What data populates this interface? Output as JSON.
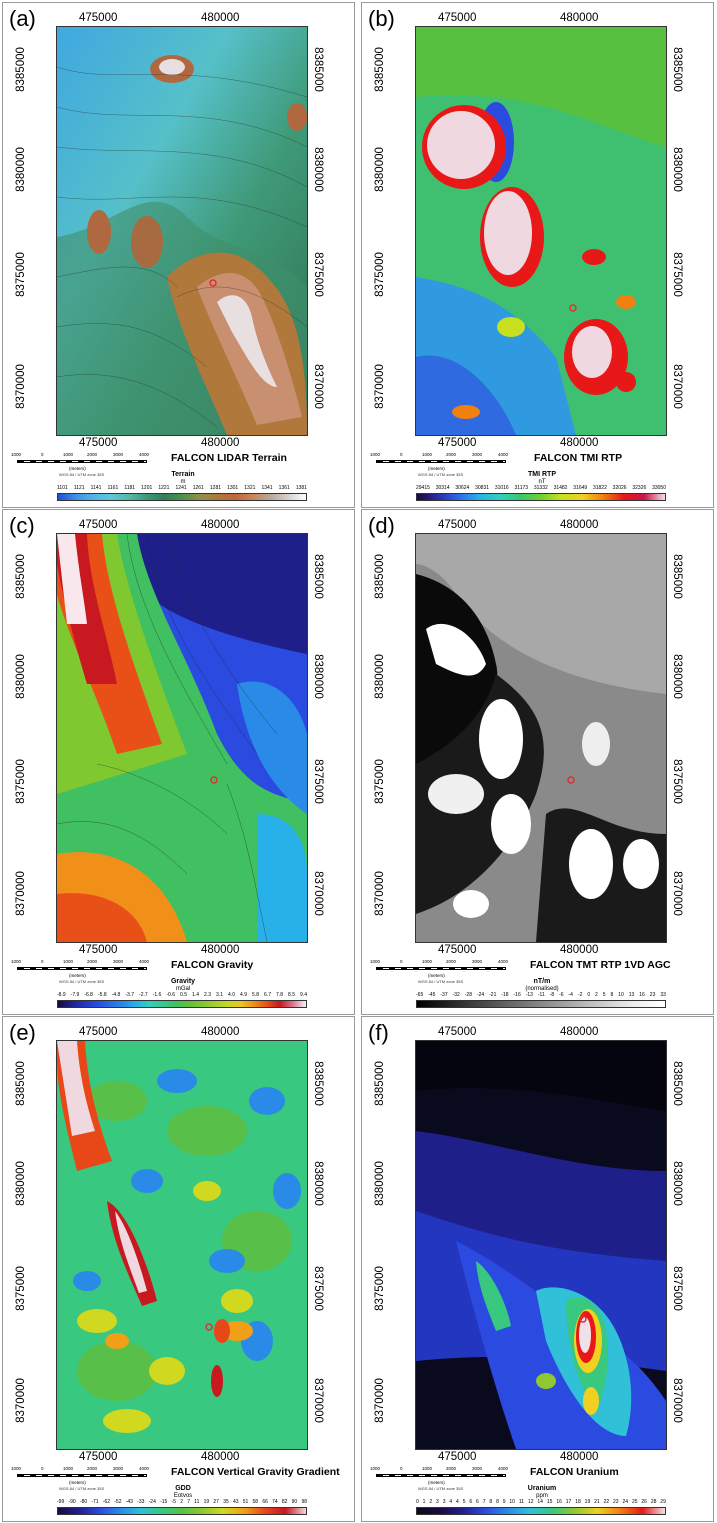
{
  "common": {
    "x_ticks": [
      "475000",
      "480000"
    ],
    "y_ticks": [
      "8385000",
      "8380000",
      "8375000",
      "8370000"
    ],
    "scale_labels": [
      "1000",
      "0",
      "1000",
      "2000",
      "3000",
      "4000"
    ],
    "scale_unit": "(meters)",
    "projection": "WGS 84 / UTM zone 35S"
  },
  "panels": [
    {
      "letter": "(a)",
      "title": "FALCON LIDAR Terrain",
      "colorbar": {
        "title": "Terrain",
        "unit": "m",
        "labels": [
          "1101",
          "1121",
          "1141",
          "1161",
          "1181",
          "1201",
          "1221",
          "1241",
          "1261",
          "1281",
          "1301",
          "1321",
          "1341",
          "1361",
          "1381"
        ],
        "colors": [
          "#1f4fd8",
          "#3f8fe8",
          "#4fb6e8",
          "#5cc7d8",
          "#56b8a8",
          "#3f9a78",
          "#2f7f5a",
          "#4f8f4a",
          "#8f8f4a",
          "#b0783a",
          "#c0663a",
          "#c8865a",
          "#b8a898",
          "#d8d0d0",
          "#ffffff"
        ]
      },
      "icons": [
        "terrain-hill-icon",
        "survey-marker-icon"
      ]
    },
    {
      "letter": "(b)",
      "title": "FALCON TMI RTP",
      "colorbar": {
        "title": "TMI RTP",
        "unit": "nT",
        "labels": [
          "29415",
          "30314",
          "30624",
          "30831",
          "31016",
          "31173",
          "31332",
          "31482",
          "31649",
          "31822",
          "32026",
          "32326",
          "33050"
        ],
        "colors": [
          "#1a0a3a",
          "#2a2aa8",
          "#2a6ae8",
          "#28b0e8",
          "#30d0c0",
          "#38c870",
          "#70d030",
          "#c8e020",
          "#f0d020",
          "#f08010",
          "#e81818",
          "#c81848",
          "#f0e0ea"
        ]
      },
      "icons": [
        "anomaly-marker-icon"
      ]
    },
    {
      "letter": "(c)",
      "title": "FALCON Gravity",
      "colorbar": {
        "title": "Gravity",
        "unit": "mGal",
        "labels": [
          "-8.9",
          "-7.9",
          "-6.8",
          "-5.8",
          "-4.8",
          "-3.7",
          "-2.7",
          "-1.6",
          "-0.6",
          "0.5",
          "1.4",
          "2.3",
          "3.1",
          "4.0",
          "4.9",
          "5.8",
          "6.7",
          "7.8",
          "8.5",
          "9.4"
        ],
        "colors": [
          "#1a0a40",
          "#1f1f8a",
          "#2236c0",
          "#2a4ae0",
          "#2a6ae8",
          "#2a8ae8",
          "#28b0e8",
          "#30d0c0",
          "#38c890",
          "#40c060",
          "#60c040",
          "#80c830",
          "#a0d028",
          "#c8d820",
          "#e8c820",
          "#f09018",
          "#e85018",
          "#c81820",
          "#d87890",
          "#f8f0f4"
        ]
      },
      "icons": [
        "anomaly-marker-icon"
      ]
    },
    {
      "letter": "(d)",
      "title": "FALCON TMT RTP 1VD AGC",
      "colorbar": {
        "title": "nT/m",
        "unit": "(normalised)",
        "labels": [
          "-65",
          "-45",
          "-37",
          "-32",
          "-28",
          "-24",
          "-21",
          "-18",
          "-16",
          "-13",
          "-11",
          "-8",
          "-6",
          "-4",
          "-2",
          "0",
          "2",
          "5",
          "8",
          "10",
          "13",
          "16",
          "23",
          "33"
        ],
        "colors": [
          "#000000",
          "#222222",
          "#444444",
          "#666666",
          "#888888",
          "#aaaaaa",
          "#cccccc",
          "#eeeeee",
          "#ffffff"
        ]
      },
      "icons": [
        "anomaly-marker-icon"
      ]
    },
    {
      "letter": "(e)",
      "title": "FALCON Vertical Gravity Gradient",
      "colorbar": {
        "title": "GDD",
        "unit": "Eotvos",
        "labels": [
          "-99",
          "-90",
          "-80",
          "-71",
          "-62",
          "-52",
          "-43",
          "-33",
          "-24",
          "-15",
          "-5",
          "2",
          "7",
          "11",
          "19",
          "27",
          "35",
          "43",
          "51",
          "58",
          "66",
          "74",
          "82",
          "90",
          "98"
        ],
        "colors": [
          "#1a0a40",
          "#1f1f8a",
          "#2a4ae0",
          "#2a8ae8",
          "#30c0d8",
          "#38c880",
          "#58c048",
          "#90c830",
          "#d0d820",
          "#f0a018",
          "#e84818",
          "#c81820",
          "#f0d8e0"
        ]
      },
      "icons": [
        "anomaly-marker-icon"
      ]
    },
    {
      "letter": "(f)",
      "title": "FALCON Uranium",
      "colorbar": {
        "title": "Uranium",
        "unit": "ppm",
        "labels": [
          "0",
          "1",
          "2",
          "3",
          "3",
          "4",
          "4",
          "5",
          "6",
          "6",
          "7",
          "8",
          "8",
          "9",
          "10",
          "11",
          "12",
          "14",
          "15",
          "16",
          "17",
          "18",
          "19",
          "21",
          "22",
          "23",
          "24",
          "25",
          "26",
          "28",
          "29"
        ],
        "colors": [
          "#0a0a1a",
          "#1a0a40",
          "#1f1f8a",
          "#2a4ae0",
          "#2a8ae8",
          "#30c0d8",
          "#38c880",
          "#90c830",
          "#f0d020",
          "#f08010",
          "#e81818",
          "#f0e0ea"
        ]
      },
      "icons": [
        "anomaly-marker-icon"
      ]
    }
  ]
}
